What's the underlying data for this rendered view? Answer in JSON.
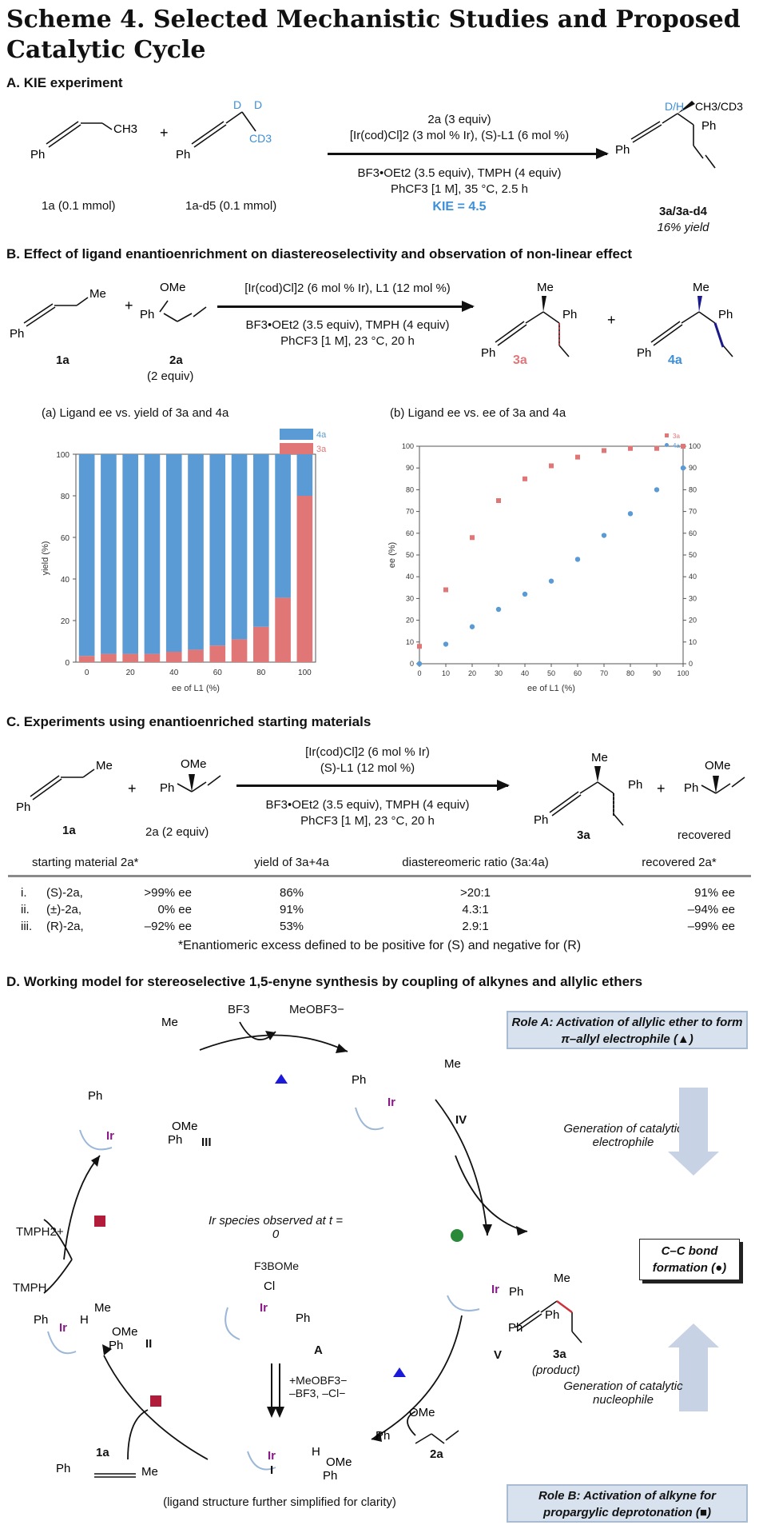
{
  "title": "Scheme 4. Selected Mechanistic Studies and Proposed Catalytic Cycle",
  "sectionA": {
    "heading": "A. KIE experiment",
    "sm1_label": "1a (0.1 mmol)",
    "sm2_label": "1a-d5 (0.1 mmol)",
    "cond_line1": "2a (3 equiv)",
    "cond_line2": "[Ir(cod)Cl]2 (3 mol % Ir), (S)-L1 (6 mol %)",
    "cond_line3": "BF3•OEt2 (3.5 equiv), TMPH (4 equiv)",
    "cond_line4": "PhCF3 [1 M], 35 °C, 2.5 h",
    "kie": "KIE = 4.5",
    "product_label": "3a/3a-d4",
    "product_yield": "16% yield",
    "plus": "+",
    "ph": "Ph",
    "ch3": "CH3",
    "d": "D",
    "cd3": "CD3",
    "dh": "D/H",
    "ch3cd3": "CH3/CD3"
  },
  "sectionB": {
    "heading": "B. Effect of ligand enantioenrichment on diastereoselectivity and observation of non-linear effect",
    "cond_line1": "[Ir(cod)Cl]2 (6 mol % Ir), L1 (12 mol %)",
    "cond_line2": "BF3•OEt2 (3.5 equiv), TMPH (4 equiv)",
    "cond_line3": "PhCF3 [1 M], 23 °C, 20 h",
    "sm1": "1a",
    "sm2": "2a",
    "sm2_equiv": "(2 equiv)",
    "prod1": "3a",
    "prod2": "4a",
    "me": "Me",
    "ome": "OMe",
    "ph": "Ph",
    "plus": "+"
  },
  "chart_data": [
    {
      "type": "bar",
      "title": "(a) Ligand ee vs. yield of 3a and 4a",
      "xlabel": "ee of L1 (%)",
      "ylabel": "yield (%)",
      "ylim": [
        0,
        100
      ],
      "categories": [
        0,
        10,
        20,
        30,
        40,
        50,
        60,
        70,
        80,
        90,
        100
      ],
      "xticks": [
        "0",
        "20",
        "40",
        "60",
        "80",
        "100"
      ],
      "yticks": [
        "0",
        "20",
        "40",
        "60",
        "80",
        "100"
      ],
      "series": [
        {
          "name": "3a",
          "color": "#e07676",
          "values": [
            3,
            4,
            4,
            4,
            5,
            6,
            8,
            11,
            17,
            31,
            80
          ]
        },
        {
          "name": "4a",
          "color": "#5b9bd5",
          "values": [
            97,
            96,
            96,
            96,
            95,
            94,
            92,
            89,
            83,
            69,
            20
          ]
        }
      ]
    },
    {
      "type": "scatter",
      "title": "(b) Ligand ee vs. ee of 3a and 4a",
      "xlabel": "ee of L1 (%)",
      "ylabel": "ee (%)",
      "xlim": [
        0,
        100
      ],
      "ylim": [
        0,
        100
      ],
      "xticks": [
        "0",
        "10",
        "20",
        "30",
        "40",
        "50",
        "60",
        "70",
        "80",
        "90",
        "100"
      ],
      "yticks": [
        "0",
        "10",
        "20",
        "30",
        "40",
        "50",
        "60",
        "70",
        "80",
        "90",
        "100"
      ],
      "series": [
        {
          "name": "3a",
          "color": "#e07676",
          "marker": "square",
          "x": [
            0,
            10,
            20,
            30,
            40,
            50,
            60,
            70,
            80,
            90,
            100
          ],
          "y": [
            8,
            34,
            58,
            75,
            85,
            91,
            95,
            98,
            99,
            99,
            100
          ]
        },
        {
          "name": "4a",
          "color": "#5b9bd5",
          "marker": "circle",
          "x": [
            0,
            10,
            20,
            30,
            40,
            50,
            60,
            70,
            80,
            90,
            100
          ],
          "y": [
            0,
            9,
            17,
            25,
            32,
            38,
            48,
            59,
            69,
            80,
            90
          ]
        }
      ]
    }
  ],
  "sectionC": {
    "heading": "C. Experiments using enantioenriched starting materials",
    "cond_line1": "[Ir(cod)Cl]2 (6 mol % Ir)",
    "cond_line2": "(S)-L1 (12 mol %)",
    "cond_line3": "BF3•OEt2 (3.5 equiv), TMPH (4 equiv)",
    "cond_line4": "PhCF3 [1 M], 23 °C, 20 h",
    "sm1": "1a",
    "sm2": "2a (2 equiv)",
    "prod": "3a",
    "recovered": "recovered",
    "table_headers": [
      "starting material 2a*",
      "yield of 3a+4a",
      "diastereomeric ratio (3a:4a)",
      "recovered 2a*"
    ],
    "rows": [
      {
        "idx": "i.",
        "sm": "(S)-2a,",
        "ee": ">99% ee",
        "yield": "86%",
        "dr": ">20:1",
        "rec": "91% ee"
      },
      {
        "idx": "ii.",
        "sm": "(±)-2a,",
        "ee": "0% ee",
        "yield": "91%",
        "dr": "4.3:1",
        "rec": "–94% ee"
      },
      {
        "idx": "iii.",
        "sm": "(R)-2a,",
        "ee": "–92% ee",
        "yield": "53%",
        "dr": "2.9:1",
        "rec": "–99% ee"
      }
    ],
    "footnote": "*Enantiomeric excess defined to be positive for (S) and negative for (R)"
  },
  "sectionD": {
    "heading": "D. Working model for stereoselective 1,5-enyne synthesis by coupling of alkynes and allylic ethers",
    "role_a": "Role A: Activation of allylic ether to form π–allyl electrophile (▲)",
    "role_b": "Role B: Activation of alkyne for propargylic deprotonation (■)",
    "gen_electrophile": "Generation of catalytic electrophile",
    "gen_nucleophile": "Generation of catalytic nucleophile",
    "cc_bond": "C–C bond formation (●)",
    "bf3": "BF3",
    "meobf3": "MeOBF3−",
    "tmph2": "TMPH2+",
    "tmph": "TMPH",
    "ir_species": "Ir species observed at t = 0",
    "f3bome": "F3BOMe",
    "species_I": "I",
    "species_II": "II",
    "species_III": "III",
    "species_IV": "IV",
    "species_V": "V",
    "species_A": "A",
    "product": "3a",
    "product_note": "(product)",
    "reagent_1a": "1a",
    "reagent_2a": "2a",
    "step_note": "+MeOBF3−\n–BF3, –Cl−",
    "footnote": "(ligand structure further simplified for clarity)"
  }
}
